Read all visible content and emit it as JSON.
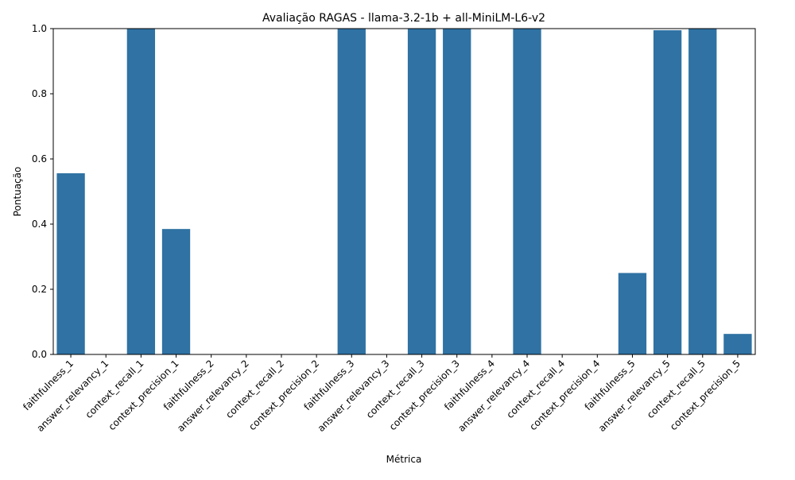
{
  "chart_data": {
    "type": "bar",
    "title": "Avaliação RAGAS - llama-3.2-1b + all-MiniLM-L6-v2",
    "xlabel": "Métrica",
    "ylabel": "Pontuação",
    "ylim": [
      0,
      1.0
    ],
    "yticks": [
      "0.0",
      "0.2",
      "0.4",
      "0.6",
      "0.8",
      "1.0"
    ],
    "grid": false,
    "bar_color": "#2f72a3",
    "categories": [
      "faithfulness_1",
      "answer_relevancy_1",
      "context_recall_1",
      "context_precision_1",
      "faithfulness_2",
      "answer_relevancy_2",
      "context_recall_2",
      "context_precision_2",
      "faithfulness_3",
      "answer_relevancy_3",
      "context_recall_3",
      "context_precision_3",
      "faithfulness_4",
      "answer_relevancy_4",
      "context_recall_4",
      "context_precision_4",
      "faithfulness_5",
      "answer_relevancy_5",
      "context_recall_5",
      "context_precision_5"
    ],
    "values": [
      0.556,
      0.0,
      1.0,
      0.385,
      0.0,
      0.0,
      0.0,
      0.0,
      1.0,
      0.0,
      1.0,
      1.0,
      0.0,
      1.0,
      0.0,
      0.0,
      0.25,
      0.995,
      1.0,
      0.063
    ]
  }
}
